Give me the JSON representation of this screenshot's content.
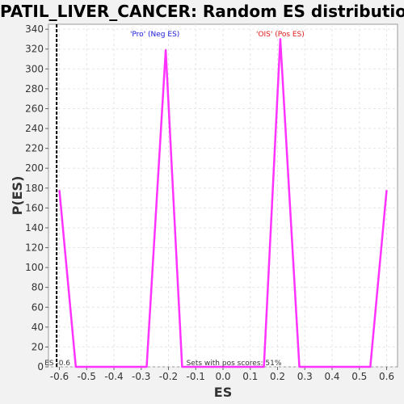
{
  "chart_data": {
    "type": "line",
    "title": "PATIL_LIVER_CANCER: Random ES distribution",
    "xlabel": "ES",
    "ylabel": "P(ES)",
    "xlim": [
      -0.64,
      0.64
    ],
    "ylim": [
      0,
      345
    ],
    "xticks": [
      -0.6,
      -0.5,
      -0.4,
      -0.3,
      -0.2,
      -0.1,
      0.0,
      0.1,
      0.2,
      0.3,
      0.4,
      0.5,
      0.6
    ],
    "xtick_labels": [
      "-0.6",
      "-0.5",
      "-0.4",
      "-0.3",
      "-0.2",
      "-0.1",
      "0.0",
      "0.1",
      "0.2",
      "0.3",
      "0.4",
      "0.5",
      "0.6"
    ],
    "yticks": [
      0,
      20,
      40,
      60,
      80,
      100,
      120,
      140,
      160,
      180,
      200,
      220,
      240,
      260,
      280,
      300,
      320,
      340
    ],
    "grid": true,
    "series": [
      {
        "color": "#ff33ff",
        "x": [
          -0.6,
          -0.54,
          -0.28,
          -0.21,
          -0.15,
          0.15,
          0.21,
          0.28,
          0.54,
          0.6
        ],
        "y": [
          178,
          0,
          0,
          319,
          0,
          0,
          330,
          0,
          0,
          178
        ]
      }
    ],
    "observed_es": {
      "x": -0.61,
      "label": "ES -0.6",
      "color": "#000000"
    },
    "annotations": [
      {
        "text": "'Pro' (Neg ES)",
        "color": "#1a1adb",
        "x": -0.25
      },
      {
        "text": "'OIS' (Pos ES)",
        "color": "#e01a1a",
        "x": 0.21
      },
      {
        "text": "Sets with pos scores: 51%",
        "color": "#333333",
        "x": 0.04
      }
    ]
  }
}
